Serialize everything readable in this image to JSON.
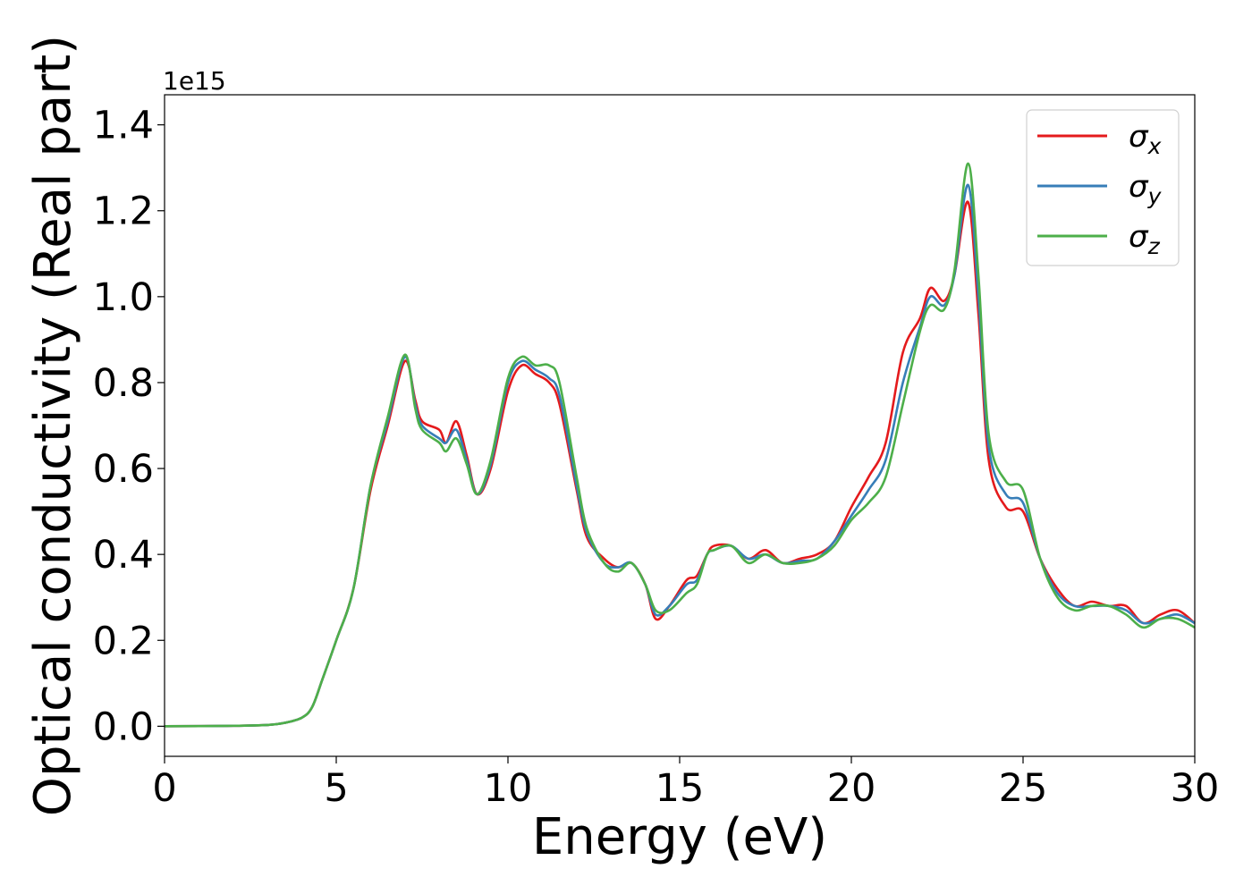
{
  "chart_data": {
    "type": "line",
    "xlabel": "Energy (eV)",
    "ylabel": "Optical conductivity (Real part)",
    "y_offset_label": "1e15",
    "xlim": [
      0,
      30
    ],
    "ylim": [
      -0.07,
      1.47
    ],
    "x_ticks": [
      0,
      5,
      10,
      15,
      20,
      25,
      30
    ],
    "y_ticks": [
      0.0,
      0.2,
      0.4,
      0.6,
      0.8,
      1.0,
      1.2,
      1.4
    ],
    "x_tick_labels": [
      "0",
      "5",
      "10",
      "15",
      "20",
      "25",
      "30"
    ],
    "y_tick_labels": [
      "0.0",
      "0.2",
      "0.4",
      "0.6",
      "0.8",
      "1.0",
      "1.2",
      "1.4"
    ],
    "grid": false,
    "legend_position": "top-right",
    "series": [
      {
        "name": "σx",
        "sub": "x",
        "color": "#e41a1c",
        "points": [
          [
            0,
            0
          ],
          [
            2,
            0.001
          ],
          [
            3,
            0.003
          ],
          [
            3.5,
            0.008
          ],
          [
            4.0,
            0.02
          ],
          [
            4.3,
            0.045
          ],
          [
            4.6,
            0.11
          ],
          [
            5.0,
            0.2
          ],
          [
            5.5,
            0.32
          ],
          [
            6.0,
            0.55
          ],
          [
            6.5,
            0.7
          ],
          [
            7.0,
            0.85
          ],
          [
            7.3,
            0.76
          ],
          [
            7.5,
            0.71
          ],
          [
            8.0,
            0.69
          ],
          [
            8.2,
            0.66
          ],
          [
            8.5,
            0.71
          ],
          [
            8.8,
            0.63
          ],
          [
            9.1,
            0.54
          ],
          [
            9.5,
            0.6
          ],
          [
            10.0,
            0.78
          ],
          [
            10.4,
            0.84
          ],
          [
            10.8,
            0.82
          ],
          [
            11.2,
            0.8
          ],
          [
            11.5,
            0.75
          ],
          [
            12.0,
            0.55
          ],
          [
            12.3,
            0.44
          ],
          [
            12.8,
            0.39
          ],
          [
            13.2,
            0.37
          ],
          [
            13.6,
            0.38
          ],
          [
            14.0,
            0.33
          ],
          [
            14.3,
            0.25
          ],
          [
            14.7,
            0.28
          ],
          [
            15.2,
            0.34
          ],
          [
            15.5,
            0.35
          ],
          [
            15.8,
            0.4
          ],
          [
            16.0,
            0.42
          ],
          [
            16.5,
            0.42
          ],
          [
            17.0,
            0.39
          ],
          [
            17.5,
            0.41
          ],
          [
            18.0,
            0.38
          ],
          [
            18.5,
            0.39
          ],
          [
            19.0,
            0.4
          ],
          [
            19.5,
            0.43
          ],
          [
            20.0,
            0.51
          ],
          [
            20.5,
            0.58
          ],
          [
            21.0,
            0.66
          ],
          [
            21.5,
            0.87
          ],
          [
            22.0,
            0.95
          ],
          [
            22.3,
            1.02
          ],
          [
            22.7,
            0.99
          ],
          [
            23.0,
            1.05
          ],
          [
            23.4,
            1.22
          ],
          [
            23.7,
            0.96
          ],
          [
            24.0,
            0.62
          ],
          [
            24.5,
            0.51
          ],
          [
            25.0,
            0.5
          ],
          [
            25.5,
            0.39
          ],
          [
            26.0,
            0.32
          ],
          [
            26.5,
            0.28
          ],
          [
            27.0,
            0.29
          ],
          [
            27.5,
            0.28
          ],
          [
            28.0,
            0.28
          ],
          [
            28.5,
            0.24
          ],
          [
            29.0,
            0.26
          ],
          [
            29.5,
            0.27
          ],
          [
            30.0,
            0.24
          ]
        ]
      },
      {
        "name": "σy",
        "sub": "y",
        "color": "#377eb8",
        "points": [
          [
            0,
            0
          ],
          [
            2,
            0.001
          ],
          [
            3,
            0.003
          ],
          [
            3.5,
            0.008
          ],
          [
            4.0,
            0.02
          ],
          [
            4.3,
            0.045
          ],
          [
            4.6,
            0.11
          ],
          [
            5.0,
            0.2
          ],
          [
            5.5,
            0.32
          ],
          [
            6.0,
            0.56
          ],
          [
            6.5,
            0.71
          ],
          [
            7.0,
            0.86
          ],
          [
            7.3,
            0.75
          ],
          [
            7.5,
            0.7
          ],
          [
            8.0,
            0.67
          ],
          [
            8.2,
            0.66
          ],
          [
            8.5,
            0.69
          ],
          [
            8.8,
            0.62
          ],
          [
            9.1,
            0.54
          ],
          [
            9.5,
            0.61
          ],
          [
            10.0,
            0.8
          ],
          [
            10.4,
            0.85
          ],
          [
            10.8,
            0.83
          ],
          [
            11.2,
            0.81
          ],
          [
            11.5,
            0.77
          ],
          [
            12.0,
            0.56
          ],
          [
            12.3,
            0.45
          ],
          [
            12.8,
            0.38
          ],
          [
            13.2,
            0.37
          ],
          [
            13.6,
            0.38
          ],
          [
            14.0,
            0.33
          ],
          [
            14.3,
            0.26
          ],
          [
            14.7,
            0.28
          ],
          [
            15.2,
            0.33
          ],
          [
            15.5,
            0.34
          ],
          [
            15.8,
            0.4
          ],
          [
            16.0,
            0.41
          ],
          [
            16.5,
            0.42
          ],
          [
            17.0,
            0.39
          ],
          [
            17.5,
            0.4
          ],
          [
            18.0,
            0.38
          ],
          [
            18.5,
            0.385
          ],
          [
            19.0,
            0.39
          ],
          [
            19.5,
            0.43
          ],
          [
            20.0,
            0.49
          ],
          [
            20.5,
            0.55
          ],
          [
            21.0,
            0.62
          ],
          [
            21.5,
            0.8
          ],
          [
            22.0,
            0.93
          ],
          [
            22.3,
            1.0
          ],
          [
            22.7,
            0.98
          ],
          [
            23.0,
            1.05
          ],
          [
            23.4,
            1.26
          ],
          [
            23.7,
            1.0
          ],
          [
            24.0,
            0.65
          ],
          [
            24.5,
            0.54
          ],
          [
            25.0,
            0.52
          ],
          [
            25.5,
            0.39
          ],
          [
            26.0,
            0.31
          ],
          [
            26.5,
            0.28
          ],
          [
            27.0,
            0.28
          ],
          [
            27.5,
            0.28
          ],
          [
            28.0,
            0.27
          ],
          [
            28.5,
            0.24
          ],
          [
            29.0,
            0.25
          ],
          [
            29.5,
            0.26
          ],
          [
            30.0,
            0.24
          ]
        ]
      },
      {
        "name": "σz",
        "sub": "z",
        "color": "#4daf4a",
        "points": [
          [
            0,
            0
          ],
          [
            2,
            0.001
          ],
          [
            3,
            0.003
          ],
          [
            3.5,
            0.008
          ],
          [
            4.0,
            0.02
          ],
          [
            4.3,
            0.045
          ],
          [
            4.6,
            0.11
          ],
          [
            5.0,
            0.2
          ],
          [
            5.5,
            0.32
          ],
          [
            6.0,
            0.56
          ],
          [
            6.5,
            0.72
          ],
          [
            7.0,
            0.865
          ],
          [
            7.3,
            0.74
          ],
          [
            7.5,
            0.69
          ],
          [
            8.0,
            0.66
          ],
          [
            8.2,
            0.64
          ],
          [
            8.5,
            0.67
          ],
          [
            8.8,
            0.61
          ],
          [
            9.1,
            0.54
          ],
          [
            9.5,
            0.62
          ],
          [
            10.0,
            0.81
          ],
          [
            10.4,
            0.86
          ],
          [
            10.8,
            0.84
          ],
          [
            11.2,
            0.84
          ],
          [
            11.5,
            0.8
          ],
          [
            12.0,
            0.58
          ],
          [
            12.3,
            0.46
          ],
          [
            12.8,
            0.38
          ],
          [
            13.2,
            0.36
          ],
          [
            13.6,
            0.38
          ],
          [
            14.0,
            0.33
          ],
          [
            14.3,
            0.27
          ],
          [
            14.7,
            0.27
          ],
          [
            15.2,
            0.31
          ],
          [
            15.5,
            0.33
          ],
          [
            15.8,
            0.4
          ],
          [
            16.0,
            0.41
          ],
          [
            16.5,
            0.42
          ],
          [
            17.0,
            0.38
          ],
          [
            17.5,
            0.4
          ],
          [
            18.0,
            0.38
          ],
          [
            18.5,
            0.38
          ],
          [
            19.0,
            0.39
          ],
          [
            19.5,
            0.42
          ],
          [
            20.0,
            0.48
          ],
          [
            20.5,
            0.52
          ],
          [
            21.0,
            0.58
          ],
          [
            21.5,
            0.75
          ],
          [
            22.0,
            0.92
          ],
          [
            22.3,
            0.98
          ],
          [
            22.7,
            0.97
          ],
          [
            23.0,
            1.06
          ],
          [
            23.4,
            1.31
          ],
          [
            23.7,
            1.05
          ],
          [
            24.0,
            0.68
          ],
          [
            24.5,
            0.57
          ],
          [
            25.0,
            0.55
          ],
          [
            25.5,
            0.39
          ],
          [
            26.0,
            0.3
          ],
          [
            26.5,
            0.27
          ],
          [
            27.0,
            0.28
          ],
          [
            27.5,
            0.28
          ],
          [
            28.0,
            0.26
          ],
          [
            28.5,
            0.23
          ],
          [
            29.0,
            0.25
          ],
          [
            29.5,
            0.25
          ],
          [
            30.0,
            0.23
          ]
        ]
      }
    ]
  }
}
